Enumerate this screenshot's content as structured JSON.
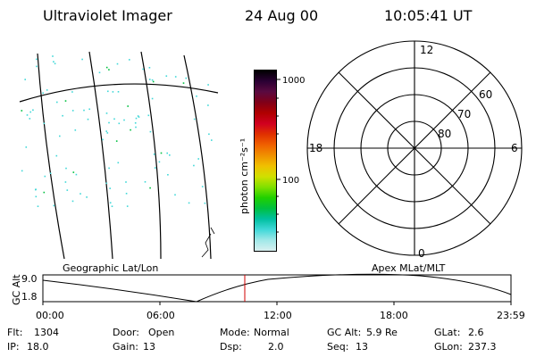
{
  "header": {
    "instrument": "Ultraviolet Imager",
    "date": "24 Aug 00",
    "time": "10:05:41 UT"
  },
  "colorbar": {
    "axis_label": "photon cm⁻²s⁻¹",
    "ticks": [
      "1000",
      "100"
    ],
    "colors": [
      "#000000",
      "#2a0033",
      "#5a0a40",
      "#800018",
      "#b00000",
      "#d00020",
      "#e03000",
      "#f06000",
      "#f09000",
      "#f0c000",
      "#d0e000",
      "#80e000",
      "#20d000",
      "#00c040",
      "#00c0a0",
      "#40d8d8",
      "#a0e8e8",
      "#d8f0f0"
    ]
  },
  "polar_plot": {
    "clock_labels": {
      "top": "12",
      "left": "18",
      "right": "6",
      "bottom": "0"
    },
    "lat_labels": [
      "60",
      "70",
      "80"
    ]
  },
  "map_label": "Geographic Lat/Lon",
  "polar_label": "Apex MLat/MLT",
  "altitude_plot": {
    "axis_title": "GC Alt",
    "y_ticks": [
      "9.0",
      "1.8"
    ],
    "x_ticks": [
      "00:00",
      "06:00",
      "12:00",
      "18:00",
      "23:59"
    ],
    "marker_color": "#d00000"
  },
  "status": {
    "row1": [
      {
        "label": "Flt:",
        "value": "1304"
      },
      {
        "label": "Door:",
        "value": "Open"
      },
      {
        "label": "Mode:",
        "value": "Normal"
      },
      {
        "label": "GC Alt:",
        "value": "5.9 Re"
      },
      {
        "label": "GLat:",
        "value": "2.6"
      }
    ],
    "row2": [
      {
        "label": "IP:",
        "value": "18.0"
      },
      {
        "label": "Gain:",
        "value": "13"
      },
      {
        "label": "Dsp:",
        "value": "2.0"
      },
      {
        "label": "Seq:",
        "value": "13"
      },
      {
        "label": "GLon:",
        "value": "237.3"
      }
    ]
  }
}
